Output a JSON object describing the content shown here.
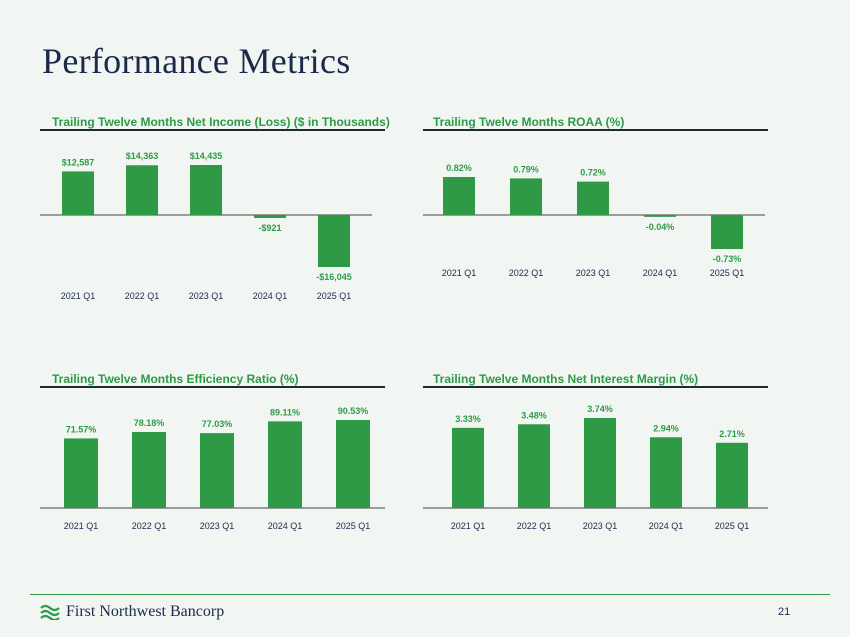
{
  "page": {
    "title": "Performance Metrics",
    "page_number": "21",
    "brand_name": "First Northwest Bancorp",
    "accent_color": "#2e9a46",
    "title_color": "#1b2a4a"
  },
  "chart_data": [
    {
      "type": "bar",
      "title": "Trailing Twelve Months Net Income (Loss) ($ in Thousands)",
      "categories": [
        "2021 Q1",
        "2022 Q1",
        "2023 Q1",
        "2024 Q1",
        "2025 Q1"
      ],
      "values": [
        12587,
        14363,
        14435,
        -921,
        -16045
      ],
      "labels": [
        "$12,587",
        "$14,363",
        "$14,435",
        "-$921",
        "-$16,045"
      ],
      "ylim": [
        -16045,
        14435
      ],
      "xlabel": "",
      "ylabel": "",
      "grid": false,
      "legend": "none"
    },
    {
      "type": "bar",
      "title": "Trailing Twelve Months ROAA (%)",
      "categories": [
        "2021 Q1",
        "2022 Q1",
        "2023 Q1",
        "2024 Q1",
        "2025 Q1"
      ],
      "values": [
        0.82,
        0.79,
        0.72,
        -0.04,
        -0.73
      ],
      "labels": [
        "0.82%",
        "0.79%",
        "0.72%",
        "-0.04%",
        "-0.73%"
      ],
      "ylim": [
        -0.73,
        0.82
      ],
      "xlabel": "",
      "ylabel": "",
      "grid": false,
      "legend": "none"
    },
    {
      "type": "bar",
      "title": "Trailing Twelve Months Efficiency Ratio (%)",
      "categories": [
        "2021 Q1",
        "2022 Q1",
        "2023 Q1",
        "2024 Q1",
        "2025 Q1"
      ],
      "values": [
        71.57,
        78.18,
        77.03,
        89.11,
        90.53
      ],
      "labels": [
        "71.57%",
        "78.18%",
        "77.03%",
        "89.11%",
        "90.53%"
      ],
      "ylim": [
        0,
        90.53
      ],
      "xlabel": "",
      "ylabel": "",
      "grid": false,
      "legend": "none"
    },
    {
      "type": "bar",
      "title": "Trailing Twelve Months Net Interest Margin (%)",
      "categories": [
        "2021 Q1",
        "2022 Q1",
        "2023 Q1",
        "2024 Q1",
        "2025 Q1"
      ],
      "values": [
        3.33,
        3.48,
        3.74,
        2.94,
        2.71
      ],
      "labels": [
        "3.33%",
        "3.48%",
        "3.74%",
        "2.94%",
        "2.71%"
      ],
      "ylim": [
        0,
        3.74
      ],
      "xlabel": "",
      "ylabel": "",
      "grid": false,
      "legend": "none"
    }
  ]
}
